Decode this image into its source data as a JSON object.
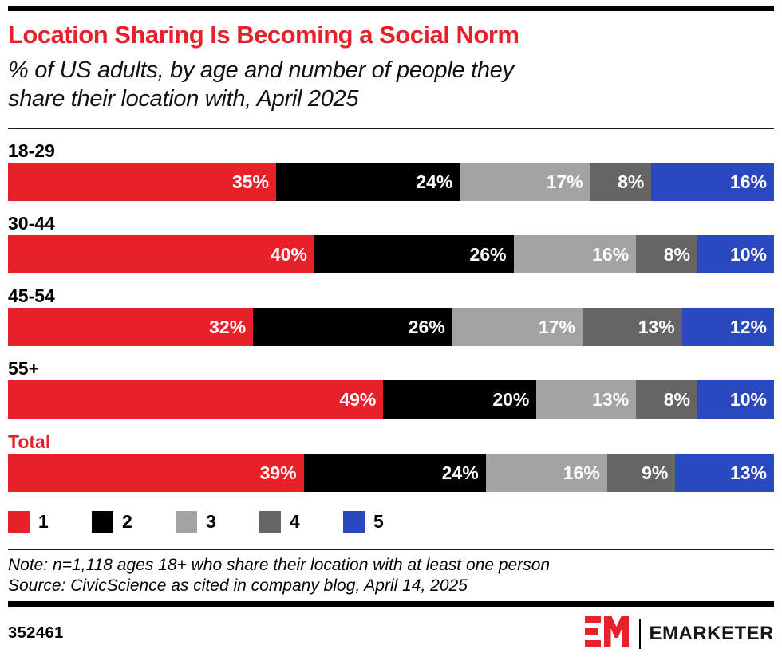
{
  "accent_color": "#E8202A",
  "header": {
    "title": "Location Sharing Is Becoming a Social Norm",
    "subtitle_lines": [
      "% of US adults, by age and number of people they",
      "share their location with, April 2025"
    ]
  },
  "chart_data": {
    "type": "bar",
    "stacked": true,
    "orientation": "horizontal",
    "unit": "%",
    "axis_range": [
      0,
      100
    ],
    "grid": false,
    "legend_position": "bottom",
    "value_labels": "inside-right-white-bold",
    "categories": [
      "18-29",
      "30-44",
      "45-54",
      "55+",
      "Total"
    ],
    "total_category": "Total",
    "series": [
      {
        "name": "1",
        "color": "#E8202A",
        "values": [
          35,
          40,
          32,
          49,
          39
        ]
      },
      {
        "name": "2",
        "color": "#000000",
        "values": [
          24,
          26,
          26,
          20,
          24
        ]
      },
      {
        "name": "3",
        "color": "#A3A3A3",
        "values": [
          17,
          16,
          17,
          13,
          16
        ]
      },
      {
        "name": "4",
        "color": "#656565",
        "values": [
          8,
          8,
          13,
          8,
          9
        ]
      },
      {
        "name": "5",
        "color": "#2B49BE",
        "values": [
          16,
          10,
          12,
          10,
          13
        ]
      }
    ]
  },
  "footnote": {
    "note": "Note: n=1,118 ages 18+ who share their location with at least one person",
    "source": "Source: CivicScience as cited in company blog, April 14, 2025"
  },
  "footer": {
    "chart_id": "352461",
    "brand": "EMARKETER"
  }
}
